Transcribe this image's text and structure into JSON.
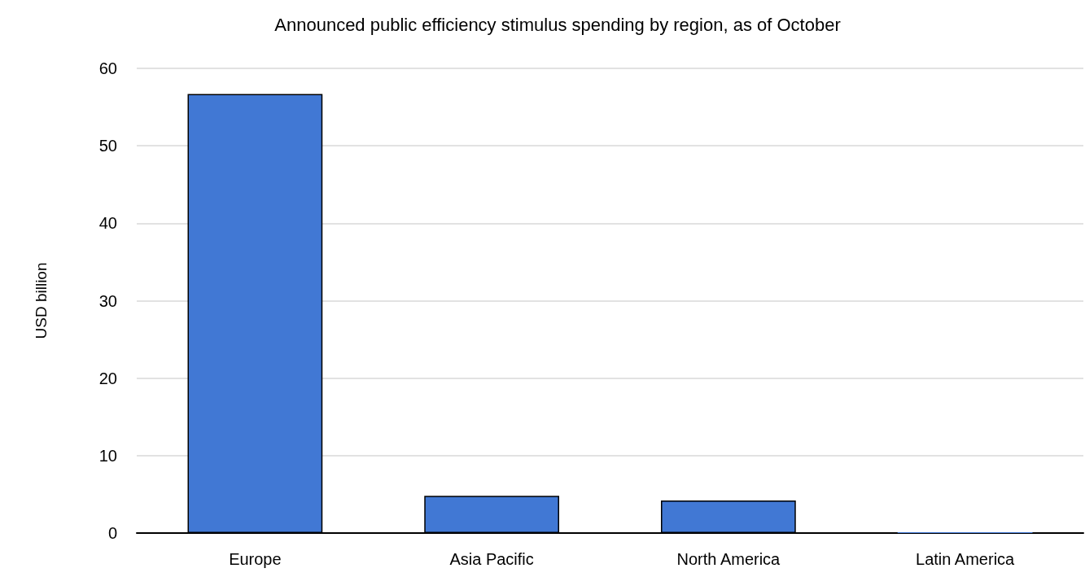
{
  "chart_data": {
    "type": "bar",
    "title": "Announced public efficiency stimulus spending by region, as of October",
    "ylabel": "USD billion",
    "categories": [
      "Europe",
      "Asia Pacific",
      "North America",
      "Latin America"
    ],
    "values": [
      56.7,
      4.8,
      4.2,
      0.1
    ],
    "color": "#4178d4",
    "ylim": [
      0,
      60
    ],
    "yticks": [
      0,
      10,
      20,
      30,
      40,
      50,
      60
    ],
    "grid": "y"
  }
}
